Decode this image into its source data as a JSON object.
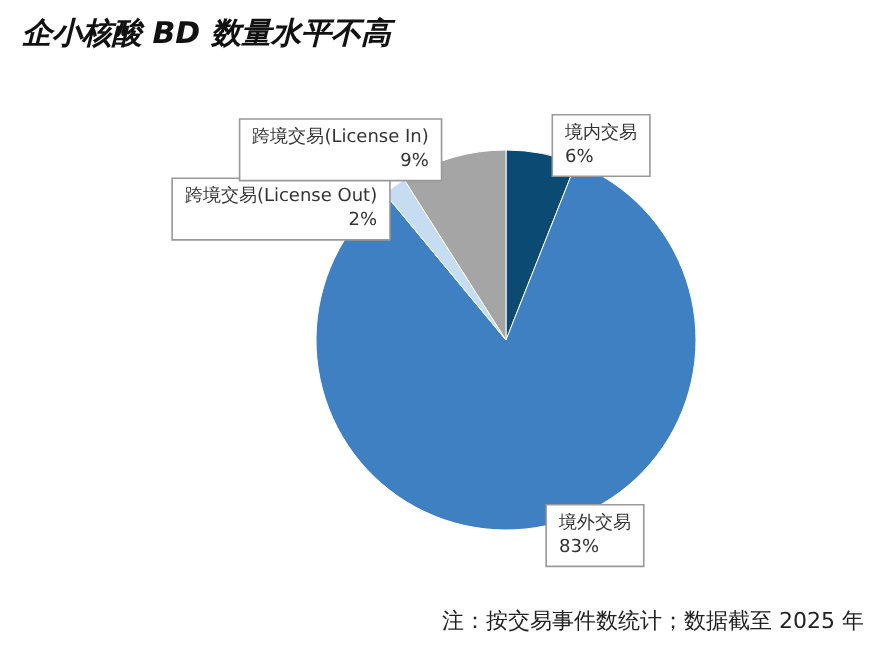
{
  "chart_data": {
    "type": "pie",
    "title": "企小核酸 BD 数量水平不高",
    "categories": [
      "境内交易",
      "境外交易",
      "跨境交易(License Out)",
      "跨境交易(License In)"
    ],
    "values": [
      6,
      83,
      2,
      9
    ],
    "colors": [
      "#0b4a72",
      "#3f80c2",
      "#c6dcf1",
      "#a5a5a5"
    ],
    "value_labels": [
      "6%",
      "83%",
      "2%",
      "9%"
    ],
    "annotations": [
      "注：按交易事件数统计；数据截至 2025 年"
    ],
    "legend": false
  }
}
